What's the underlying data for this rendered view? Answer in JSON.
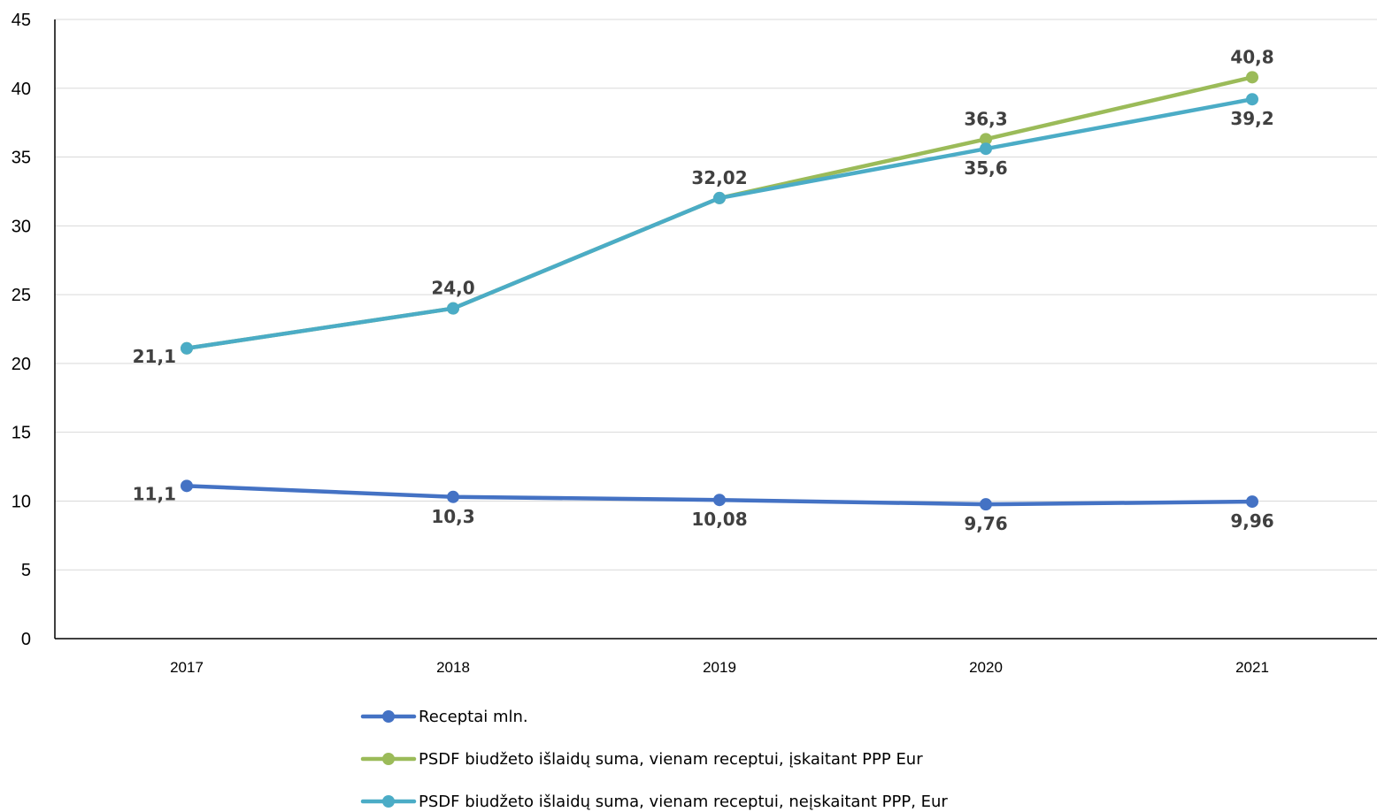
{
  "chart_data": {
    "type": "line",
    "title": "",
    "xlabel": "",
    "ylabel": "",
    "ylim": [
      0,
      45
    ],
    "y_ticks": [
      0,
      5,
      10,
      15,
      20,
      25,
      30,
      35,
      40,
      45
    ],
    "y_tick_labels": [
      "0",
      "5",
      "10",
      "15",
      "20",
      "25",
      "30",
      "35",
      "40",
      "45"
    ],
    "categories": [
      "2017",
      "2018",
      "2019",
      "2020",
      "2021"
    ],
    "grid": true,
    "legend_position": "bottom",
    "series": [
      {
        "name": "Receptai mln.",
        "color": "#4472C4",
        "values": [
          11.1,
          10.3,
          10.08,
          9.76,
          9.96
        ],
        "labels": [
          "11,1",
          "10,3",
          "10,08",
          "9,76",
          "9,96"
        ],
        "label_positions": [
          "left",
          "below",
          "below",
          "below",
          "below"
        ]
      },
      {
        "name": "PSDF biudžeto išlaidų suma, vienam receptui, įskaitant PPP Eur",
        "color": "#9BBB59",
        "values": [
          21.1,
          24.0,
          32.02,
          36.3,
          40.8
        ],
        "labels": [
          "",
          "",
          "",
          "36,3",
          "40,8"
        ],
        "label_positions": [
          "left",
          "above",
          "above",
          "above",
          "above"
        ]
      },
      {
        "name": "PSDF biudžeto išlaidų suma, vienam receptui, neįskaitant PPP, Eur",
        "color": "#4BACC6",
        "values": [
          21.1,
          24.0,
          32.02,
          35.6,
          39.2
        ],
        "labels": [
          "21,1",
          "24,0",
          "32,02",
          "35,6",
          "39,2"
        ],
        "label_positions": [
          "left",
          "above",
          "above",
          "below",
          "below"
        ]
      }
    ]
  }
}
